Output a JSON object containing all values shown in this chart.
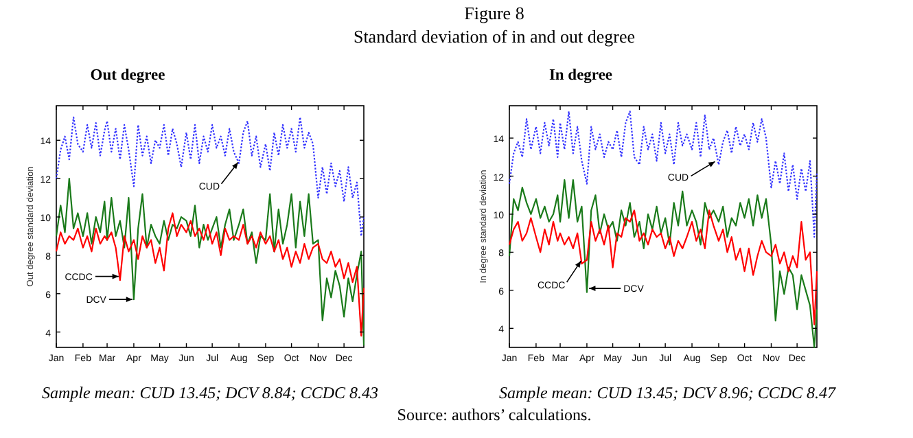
{
  "chart_data": [
    {
      "type": "line",
      "title": "Out degree",
      "ylabel": "Out degree standard deviation",
      "x": [
        "--01-01",
        "--01-06",
        "--01-11",
        "--01-16",
        "--01-21",
        "--01-26",
        "--02-01",
        "--02-06",
        "--02-11",
        "--02-16",
        "--02-21",
        "--02-26",
        "--03-01",
        "--03-06",
        "--03-11",
        "--03-16",
        "--03-21",
        "--03-26",
        "--04-01",
        "--04-06",
        "--04-11",
        "--04-16",
        "--04-21",
        "--04-26",
        "--05-01",
        "--05-06",
        "--05-11",
        "--05-16",
        "--05-21",
        "--05-26",
        "--06-01",
        "--06-06",
        "--06-11",
        "--06-16",
        "--06-21",
        "--06-26",
        "--07-01",
        "--07-06",
        "--07-11",
        "--07-16",
        "--07-21",
        "--07-26",
        "--08-01",
        "--08-06",
        "--08-11",
        "--08-16",
        "--08-21",
        "--08-26",
        "--09-01",
        "--09-06",
        "--09-11",
        "--09-16",
        "--09-21",
        "--09-26",
        "--10-01",
        "--10-06",
        "--10-11",
        "--10-16",
        "--10-21",
        "--10-26",
        "--11-01",
        "--11-06",
        "--11-11",
        "--11-16",
        "--11-21",
        "--11-26",
        "--12-01",
        "--12-06",
        "--12-11",
        "--12-16",
        "--12-21",
        "--12-24"
      ],
      "xlim": [
        "--01-01",
        "--12-24"
      ],
      "xticks": [
        {
          "value": "--01-01",
          "label": "Jan"
        },
        {
          "value": "--02-01",
          "label": "Feb"
        },
        {
          "value": "--03-01",
          "label": "Mar"
        },
        {
          "value": "--04-01",
          "label": "Apr"
        },
        {
          "value": "--05-01",
          "label": "May"
        },
        {
          "value": "--06-01",
          "label": "Jun"
        },
        {
          "value": "--07-01",
          "label": "Jul"
        },
        {
          "value": "--08-01",
          "label": "Aug"
        },
        {
          "value": "--09-01",
          "label": "Sep"
        },
        {
          "value": "--10-01",
          "label": "Oct"
        },
        {
          "value": "--11-01",
          "label": "Nov"
        },
        {
          "value": "--12-01",
          "label": "Dec"
        }
      ],
      "ylim": [
        3.2,
        15.8
      ],
      "yticks": [
        4,
        6,
        8,
        10,
        12,
        14
      ],
      "series": [
        {
          "color": "#3333ff",
          "line_style": "dotted",
          "values": [
            12.0,
            13.5,
            14.2,
            13.0,
            15.2,
            13.8,
            13.4,
            14.8,
            13.6,
            14.9,
            13.2,
            14.5,
            15.0,
            13.4,
            14.6,
            13.0,
            14.8,
            13.5,
            11.6,
            14.8,
            13.2,
            14.2,
            12.8,
            14.0,
            13.6,
            14.8,
            13.2,
            14.6,
            13.8,
            12.6,
            14.4,
            13.0,
            14.8,
            12.8,
            14.2,
            13.4,
            14.8,
            13.6,
            14.2,
            13.2,
            14.6,
            13.4,
            12.8,
            14.4,
            15.0,
            13.2,
            14.2,
            12.6,
            13.8,
            12.4,
            14.4,
            13.2,
            14.8,
            13.6,
            14.6,
            13.4,
            15.2,
            13.6,
            14.4,
            13.8,
            11.0,
            12.6,
            11.2,
            12.8,
            11.6,
            12.4,
            10.8,
            12.6,
            11.0,
            11.8,
            9.0,
            10.0
          ]
        },
        {
          "color": "#1a7a1a",
          "line_style": "solid",
          "values": [
            9.0,
            10.6,
            9.2,
            12.0,
            9.4,
            10.2,
            9.0,
            10.2,
            8.6,
            10.0,
            9.2,
            10.8,
            8.8,
            11.0,
            9.0,
            9.8,
            8.4,
            11.0,
            5.7,
            9.4,
            11.2,
            8.4,
            9.6,
            9.0,
            8.6,
            9.8,
            8.8,
            9.6,
            9.4,
            10.0,
            9.8,
            9.0,
            10.6,
            8.4,
            9.6,
            8.8,
            9.4,
            10.0,
            8.4,
            9.6,
            10.4,
            8.8,
            9.6,
            10.4,
            8.6,
            9.2,
            7.6,
            9.0,
            8.8,
            11.2,
            8.2,
            10.4,
            8.6,
            9.6,
            11.2,
            8.4,
            10.8,
            9.0,
            11.2,
            8.6,
            8.8,
            4.6,
            6.8,
            5.8,
            7.2,
            6.4,
            4.8,
            6.8,
            5.6,
            7.0,
            8.2,
            3.3
          ]
        },
        {
          "color": "#ff0000",
          "line_style": "solid",
          "values": [
            8.2,
            9.2,
            8.6,
            9.0,
            8.8,
            9.4,
            8.4,
            9.0,
            8.2,
            9.4,
            8.6,
            9.0,
            8.8,
            9.2,
            8.4,
            6.7,
            9.0,
            8.2,
            8.8,
            7.8,
            9.0,
            8.4,
            8.8,
            7.6,
            8.4,
            7.2,
            9.4,
            10.2,
            9.0,
            9.6,
            9.2,
            9.8,
            9.0,
            9.4,
            8.8,
            9.6,
            8.6,
            9.2,
            8.0,
            9.4,
            8.8,
            9.0,
            8.8,
            9.6,
            8.6,
            9.0,
            8.4,
            9.2,
            8.6,
            9.0,
            8.2,
            8.8,
            7.8,
            8.4,
            7.4,
            8.2,
            7.6,
            8.6,
            7.8,
            8.4,
            8.6,
            7.8,
            7.6,
            8.2,
            7.4,
            7.8,
            6.8,
            7.6,
            6.6,
            7.4,
            3.8,
            6.3
          ]
        }
      ],
      "annotations": [
        "Figure 8",
        "Standard deviation of in and out degree",
        "Sample mean: CUD 13.45; DCV 8.84; CCDC 8.43",
        {
          "text": "CUD",
          "x": "--08-01",
          "y": 12.9
        },
        {
          "text": "CCDC",
          "x": "--03-16",
          "y": 6.9
        },
        {
          "text": "DCV",
          "x": "--04-01",
          "y": 5.7
        }
      ]
    },
    {
      "type": "line",
      "title": "In degree",
      "ylabel": "In degree standard deviation",
      "x": [
        "--01-01",
        "--01-06",
        "--01-11",
        "--01-16",
        "--01-21",
        "--01-26",
        "--02-01",
        "--02-06",
        "--02-11",
        "--02-16",
        "--02-21",
        "--02-26",
        "--03-01",
        "--03-06",
        "--03-11",
        "--03-16",
        "--03-21",
        "--03-26",
        "--04-01",
        "--04-06",
        "--04-11",
        "--04-16",
        "--04-21",
        "--04-26",
        "--05-01",
        "--05-06",
        "--05-11",
        "--05-16",
        "--05-21",
        "--05-26",
        "--06-01",
        "--06-06",
        "--06-11",
        "--06-16",
        "--06-21",
        "--06-26",
        "--07-01",
        "--07-06",
        "--07-11",
        "--07-16",
        "--07-21",
        "--07-26",
        "--08-01",
        "--08-06",
        "--08-11",
        "--08-16",
        "--08-21",
        "--08-26",
        "--09-01",
        "--09-06",
        "--09-11",
        "--09-16",
        "--09-21",
        "--09-26",
        "--10-01",
        "--10-06",
        "--10-11",
        "--10-16",
        "--10-21",
        "--10-26",
        "--11-01",
        "--11-06",
        "--11-11",
        "--11-16",
        "--11-21",
        "--11-26",
        "--12-01",
        "--12-06",
        "--12-11",
        "--12-16",
        "--12-21",
        "--12-24"
      ],
      "xlim": [
        "--01-01",
        "--12-24"
      ],
      "xticks": [
        {
          "value": "--01-01",
          "label": "Jan"
        },
        {
          "value": "--02-01",
          "label": "Feb"
        },
        {
          "value": "--03-01",
          "label": "Mar"
        },
        {
          "value": "--04-01",
          "label": "Apr"
        },
        {
          "value": "--05-01",
          "label": "May"
        },
        {
          "value": "--06-01",
          "label": "Jun"
        },
        {
          "value": "--07-01",
          "label": "Jul"
        },
        {
          "value": "--08-01",
          "label": "Aug"
        },
        {
          "value": "--09-01",
          "label": "Sep"
        },
        {
          "value": "--10-01",
          "label": "Oct"
        },
        {
          "value": "--11-01",
          "label": "Nov"
        },
        {
          "value": "--12-01",
          "label": "Dec"
        }
      ],
      "ylim": [
        3.0,
        15.7
      ],
      "yticks": [
        4,
        6,
        8,
        10,
        12,
        14
      ],
      "series": [
        {
          "color": "#3333ff",
          "line_style": "dotted",
          "values": [
            11.6,
            13.2,
            13.8,
            13.0,
            15.0,
            13.4,
            14.6,
            13.2,
            14.8,
            13.6,
            15.0,
            13.0,
            14.8,
            13.4,
            15.4,
            13.2,
            14.6,
            12.8,
            11.6,
            14.6,
            13.4,
            14.2,
            13.0,
            13.8,
            13.4,
            14.4,
            13.0,
            14.8,
            15.4,
            13.0,
            12.6,
            14.6,
            13.4,
            14.2,
            12.8,
            14.8,
            13.2,
            14.2,
            12.6,
            14.8,
            13.6,
            14.2,
            13.4,
            14.8,
            13.0,
            15.2,
            13.4,
            14.0,
            12.6,
            13.8,
            14.4,
            13.2,
            14.6,
            13.6,
            14.2,
            13.4,
            14.8,
            13.8,
            15.0,
            14.0,
            11.4,
            12.8,
            11.6,
            13.2,
            11.2,
            12.6,
            10.8,
            12.4,
            11.2,
            12.8,
            8.8,
            12.2
          ]
        },
        {
          "color": "#1a7a1a",
          "line_style": "solid",
          "values": [
            7.8,
            10.8,
            10.2,
            11.4,
            10.6,
            10.0,
            10.8,
            9.8,
            10.4,
            9.6,
            10.0,
            11.0,
            9.6,
            11.8,
            9.8,
            11.8,
            9.6,
            10.4,
            5.9,
            10.2,
            11.0,
            9.0,
            10.0,
            9.2,
            9.6,
            8.6,
            10.2,
            9.4,
            10.6,
            8.8,
            9.6,
            8.2,
            10.0,
            9.2,
            10.4,
            9.0,
            9.8,
            8.4,
            10.6,
            9.4,
            11.2,
            9.4,
            10.2,
            9.6,
            8.4,
            10.6,
            9.8,
            10.2,
            9.6,
            10.4,
            8.8,
            9.8,
            9.4,
            10.6,
            9.8,
            10.8,
            9.4,
            11.0,
            9.8,
            10.8,
            8.4,
            4.4,
            7.0,
            5.8,
            7.2,
            6.8,
            5.0,
            6.8,
            6.0,
            5.2,
            3.0,
            5.0
          ]
        },
        {
          "color": "#ff0000",
          "line_style": "solid",
          "values": [
            8.4,
            9.2,
            9.6,
            8.6,
            9.0,
            9.8,
            8.8,
            8.0,
            9.2,
            8.4,
            9.6,
            8.6,
            9.0,
            8.4,
            8.8,
            8.2,
            9.0,
            7.4,
            7.6,
            9.6,
            8.6,
            9.2,
            8.4,
            9.4,
            7.2,
            9.0,
            8.8,
            9.8,
            9.6,
            10.2,
            8.6,
            9.0,
            8.4,
            9.2,
            8.8,
            9.0,
            8.2,
            8.8,
            7.8,
            8.6,
            8.2,
            8.8,
            9.6,
            8.6,
            9.2,
            8.2,
            10.2,
            9.4,
            8.6,
            9.2,
            8.0,
            8.8,
            7.6,
            8.2,
            7.0,
            8.2,
            6.8,
            7.8,
            8.6,
            8.0,
            7.8,
            8.4,
            7.4,
            8.0,
            7.0,
            7.8,
            7.2,
            9.6,
            7.6,
            8.0,
            4.2,
            7.0
          ]
        }
      ],
      "annotations": [
        "Sample mean: CUD 13.45; DCV 8.96; CCDC 8.47",
        "Source: authors’ calculations.",
        {
          "text": "CUD",
          "x": "--08-29",
          "y": 12.8
        },
        {
          "text": "CCDC",
          "x": "--03-26",
          "y": 7.6
        },
        {
          "text": "DCV",
          "x": "--04-02",
          "y": 6.1
        }
      ]
    }
  ]
}
